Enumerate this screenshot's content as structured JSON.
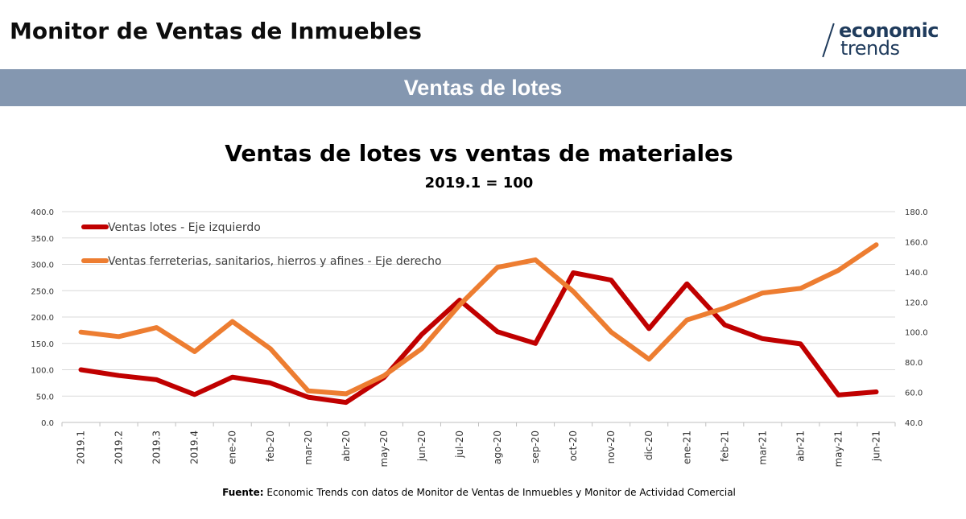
{
  "header": {
    "title": "Monitor de Ventas de Inmuebles",
    "logo_line1": "economic",
    "logo_line2": "trends"
  },
  "section": {
    "title": "Ventas de lotes"
  },
  "source": {
    "label": "Fuente:",
    "text": "Economic Trends con datos de Monitor de Ventas de Inmuebles y Monitor de Actividad Comercial"
  },
  "colors": {
    "band": "#8497b0",
    "series_lotes": "#c00000",
    "series_materiales": "#ed7d31",
    "logo": "#1f3b5c"
  },
  "chart_data": {
    "type": "line",
    "title": "Ventas de lotes vs ventas de materiales",
    "subtitle": "2019.1 = 100",
    "categories": [
      "2019.1",
      "2019.2",
      "2019.3",
      "2019.4",
      "ene-20",
      "feb-20",
      "mar-20",
      "abr-20",
      "may-20",
      "jun-20",
      "jul-20",
      "ago-20",
      "sep-20",
      "oct-20",
      "nov-20",
      "dic-20",
      "ene-21",
      "feb-21",
      "mar-21",
      "abr-21",
      "may-21",
      "jun-21"
    ],
    "y_left": {
      "min": 0,
      "max": 400,
      "step": 50,
      "ticks": [
        "0.0",
        "50.0",
        "100.0",
        "150.0",
        "200.0",
        "250.0",
        "300.0",
        "350.0",
        "400.0"
      ]
    },
    "y_right": {
      "min": 40,
      "max": 180,
      "step": 20,
      "ticks": [
        "40.0",
        "60.0",
        "80.0",
        "100.0",
        "120.0",
        "140.0",
        "160.0",
        "180.0"
      ]
    },
    "grid": true,
    "legend_position": "top-left",
    "series": [
      {
        "name": "Ventas lotes - Eje izquierdo",
        "axis": "left",
        "color": "#c00000",
        "values": [
          100,
          89,
          81,
          53,
          86,
          75,
          48,
          38,
          85,
          167,
          232,
          172,
          150,
          284,
          270,
          178,
          263,
          185,
          159,
          149,
          52,
          58
        ]
      },
      {
        "name": "Ventas ferreterias, sanitarios, hierros y afines - Eje derecho",
        "axis": "right",
        "color": "#ed7d31",
        "values": [
          100,
          97,
          103,
          87,
          107,
          89,
          61,
          59,
          71,
          89,
          118,
          143,
          148,
          127,
          100,
          82,
          108,
          116,
          126,
          129,
          141,
          158
        ]
      }
    ]
  }
}
